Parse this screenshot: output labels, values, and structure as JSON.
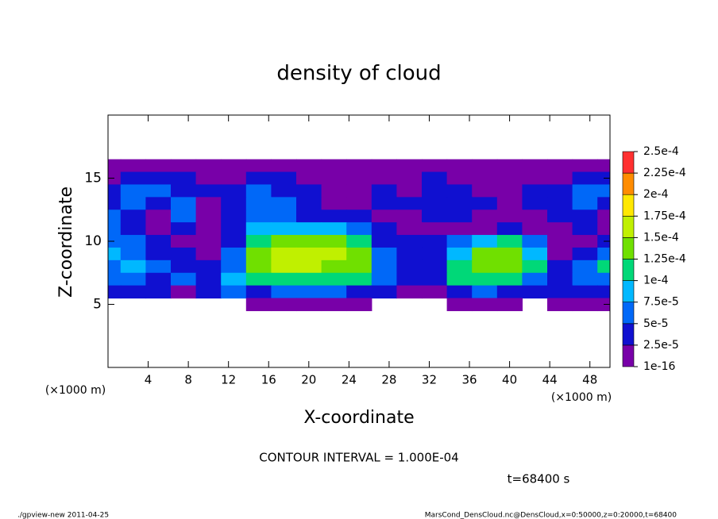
{
  "chart_data": {
    "type": "contour",
    "title": "density of cloud",
    "x_label": "X-coordinate",
    "y_label": "Z-coordinate",
    "x_unit_label": "(×1000 m)",
    "contour_interval_text": "CONTOUR INTERVAL = 1.000E-04",
    "time_text": "t=68400 s",
    "footer_left": "./gpview-new   2011-04-25",
    "footer_right": "MarsCond_DensCloud.nc@DensCloud,x=0:50000,z=0:20000,t=68400",
    "xlim": [
      0,
      50
    ],
    "ylim": [
      0,
      20
    ],
    "xticks": [
      4,
      8,
      12,
      16,
      20,
      24,
      28,
      32,
      36,
      40,
      44,
      48
    ],
    "yticks": [
      5,
      10,
      15
    ],
    "levels": [
      {
        "value": 1e-16,
        "label": "1e-16"
      },
      {
        "value": 2.5e-05,
        "label": "2.5e-5"
      },
      {
        "value": 5e-05,
        "label": "5e-5"
      },
      {
        "value": 7.5e-05,
        "label": "7.5e-5"
      },
      {
        "value": 0.0001,
        "label": "1e-4"
      },
      {
        "value": 0.000125,
        "label": "1.25e-4"
      },
      {
        "value": 0.00015,
        "label": "1.5e-4"
      },
      {
        "value": 0.000175,
        "label": "1.75e-4"
      },
      {
        "value": 0.0002,
        "label": "2e-4"
      },
      {
        "value": 0.000225,
        "label": "2.25e-4"
      },
      {
        "value": 0.00025,
        "label": "2.5e-4"
      }
    ],
    "colors": [
      "#7800a8",
      "#1010d0",
      "#0068f8",
      "#00b8ff",
      "#00d878",
      "#70e000",
      "#c0f000",
      "#ffe800",
      "#ff8c00",
      "#ff3030"
    ],
    "x": [
      0,
      2.5,
      5,
      7.5,
      10,
      12.5,
      15,
      17.5,
      20,
      22.5,
      25,
      27.5,
      30,
      32.5,
      35,
      37.5,
      40,
      42.5,
      45,
      47.5,
      50
    ],
    "z_levels": [
      16,
      15,
      14,
      13,
      12,
      11,
      10,
      9,
      8,
      7,
      6,
      5
    ],
    "z": [
      [
        1e-06,
        1e-06,
        1e-06,
        1e-06,
        1e-06,
        1e-06,
        1e-06,
        1e-06,
        1e-06,
        1e-06,
        1e-06,
        1e-06,
        1e-06,
        1e-06,
        1e-06,
        1e-06,
        1e-06,
        1e-06,
        1e-06,
        1e-06,
        1e-06
      ],
      [
        1e-06,
        3e-05,
        3e-05,
        3e-05,
        1e-06,
        1e-06,
        3e-05,
        3e-05,
        1e-06,
        1e-06,
        1e-06,
        1e-06,
        1e-06,
        3e-05,
        1e-06,
        1e-06,
        1e-06,
        1e-06,
        1e-06,
        3e-05,
        3e-05
      ],
      [
        3e-05,
        6e-05,
        6e-05,
        3e-05,
        3e-05,
        3e-05,
        6e-05,
        3e-05,
        3e-05,
        1e-06,
        1e-06,
        3e-05,
        1e-06,
        3e-05,
        3e-05,
        1e-06,
        1e-06,
        3e-05,
        3e-05,
        6e-05,
        6e-05
      ],
      [
        3e-05,
        6e-05,
        3e-05,
        6e-05,
        1e-06,
        3e-05,
        6e-05,
        6e-05,
        3e-05,
        1e-06,
        1e-06,
        3e-05,
        3e-05,
        3e-05,
        3e-05,
        3e-05,
        1e-06,
        3e-05,
        3e-05,
        6e-05,
        3e-05
      ],
      [
        6e-05,
        3e-05,
        1e-06,
        6e-05,
        1e-06,
        3e-05,
        6e-05,
        6e-05,
        3e-05,
        3e-05,
        3e-05,
        1e-06,
        1e-06,
        3e-05,
        3e-05,
        1e-06,
        1e-06,
        1e-06,
        3e-05,
        3e-05,
        1e-06
      ],
      [
        6e-05,
        3e-05,
        1e-06,
        3e-05,
        1e-06,
        3e-05,
        8.5e-05,
        8.5e-05,
        8.5e-05,
        8.5e-05,
        6e-05,
        3e-05,
        1e-06,
        1e-06,
        1e-06,
        1e-06,
        3e-05,
        1e-06,
        1e-06,
        3e-05,
        1e-06
      ],
      [
        6e-05,
        6e-05,
        3e-05,
        1e-06,
        1e-06,
        3e-05,
        0.00011,
        0.00014,
        0.00014,
        0.00014,
        0.00011,
        3e-05,
        3e-05,
        3e-05,
        6e-05,
        8.5e-05,
        0.00011,
        6e-05,
        1e-06,
        1e-06,
        3e-05
      ],
      [
        8.5e-05,
        6e-05,
        3e-05,
        3e-05,
        1e-06,
        6e-05,
        0.00014,
        0.00016,
        0.00016,
        0.00016,
        0.00014,
        6e-05,
        3e-05,
        3e-05,
        8.5e-05,
        0.00014,
        0.00014,
        8.5e-05,
        1e-06,
        3e-05,
        6e-05
      ],
      [
        6e-05,
        8.5e-05,
        6e-05,
        3e-05,
        3e-05,
        6e-05,
        0.00014,
        0.00016,
        0.00016,
        0.00014,
        0.00014,
        6e-05,
        3e-05,
        3e-05,
        0.00011,
        0.00014,
        0.00014,
        0.00011,
        3e-05,
        6e-05,
        0.00011
      ],
      [
        6e-05,
        6e-05,
        3e-05,
        6e-05,
        3e-05,
        8.5e-05,
        0.00011,
        0.00011,
        0.00011,
        0.00011,
        0.00011,
        6e-05,
        3e-05,
        3e-05,
        0.00011,
        0.00011,
        0.00011,
        6e-05,
        3e-05,
        6e-05,
        6e-05
      ],
      [
        3e-05,
        3e-05,
        3e-05,
        1e-06,
        3e-05,
        6e-05,
        3e-05,
        6e-05,
        6e-05,
        6e-05,
        3e-05,
        3e-05,
        1e-06,
        1e-06,
        3e-05,
        6e-05,
        3e-05,
        3e-05,
        3e-05,
        3e-05,
        3e-05
      ],
      [
        null,
        null,
        null,
        null,
        null,
        null,
        1e-06,
        1e-06,
        1e-06,
        1e-06,
        1e-06,
        null,
        null,
        null,
        1e-06,
        1e-06,
        1e-06,
        null,
        1e-06,
        1e-06,
        1e-06
      ]
    ]
  }
}
